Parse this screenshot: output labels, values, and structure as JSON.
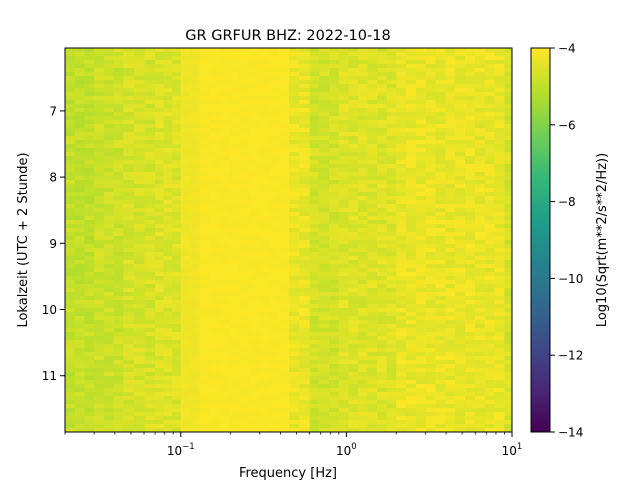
{
  "chart_data": {
    "type": "heatmap",
    "title": "GR GRFUR  BHZ: 2022-10-18",
    "xlabel": "Frequency [Hz]",
    "ylabel": "Lokalzeit (UTC + 2 Stunde)",
    "xscale": "log",
    "xlim": [
      0.02,
      10
    ],
    "x_ticks": [
      {
        "value": 0.1,
        "base": "10",
        "exp": "−1"
      },
      {
        "value": 1,
        "base": "10",
        "exp": "0"
      },
      {
        "value": 10,
        "base": "10",
        "exp": "1"
      }
    ],
    "ylim": [
      6.05,
      11.85
    ],
    "y_inverted": true,
    "y_ticks": [
      {
        "value": 7,
        "label": "7"
      },
      {
        "value": 8,
        "label": "8"
      },
      {
        "value": 9,
        "label": "9"
      },
      {
        "value": 10,
        "label": "10"
      },
      {
        "value": 11,
        "label": "11"
      }
    ],
    "colorbar": {
      "label": "Log10(Sqrt(m**2/s**2/Hz))",
      "colormap": "viridis",
      "range": [
        -14,
        -4
      ],
      "ticks": [
        {
          "value": -4,
          "label": "−4"
        },
        {
          "value": -6,
          "label": "−6"
        },
        {
          "value": -8,
          "label": "−8"
        },
        {
          "value": -10,
          "label": "−10"
        },
        {
          "value": -12,
          "label": "−12"
        },
        {
          "value": -14,
          "label": "−14"
        }
      ]
    },
    "frequency_bands": [
      {
        "f_min": 0.02,
        "f_max": 0.03,
        "value": -4.9
      },
      {
        "f_min": 0.03,
        "f_max": 0.045,
        "value": -4.75
      },
      {
        "f_min": 0.045,
        "f_max": 0.07,
        "value": -4.6
      },
      {
        "f_min": 0.07,
        "f_max": 0.1,
        "value": -4.5
      },
      {
        "f_min": 0.1,
        "f_max": 0.13,
        "value": -4.2
      },
      {
        "f_min": 0.13,
        "f_max": 0.45,
        "value": -4.05
      },
      {
        "f_min": 0.45,
        "f_max": 0.6,
        "value": -4.3
      },
      {
        "f_min": 0.6,
        "f_max": 0.9,
        "value": -4.65
      },
      {
        "f_min": 0.9,
        "f_max": 2.0,
        "value": -4.5
      },
      {
        "f_min": 2.0,
        "f_max": 9.0,
        "value": -4.3
      },
      {
        "f_min": 9.0,
        "f_max": 10.0,
        "value": -4.6
      }
    ],
    "colors": {
      "viridis": [
        "#440154",
        "#482878",
        "#3e4989",
        "#31688e",
        "#26828e",
        "#1f9e89",
        "#35b779",
        "#6ece58",
        "#b5de2b",
        "#fde725"
      ]
    }
  }
}
